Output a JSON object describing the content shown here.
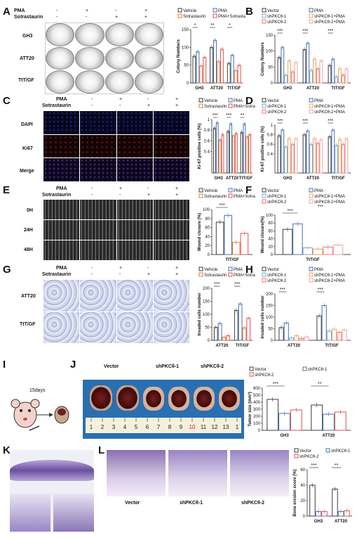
{
  "panels": [
    "A",
    "B",
    "C",
    "D",
    "E",
    "F",
    "G",
    "H",
    "I",
    "J",
    "K",
    "L"
  ],
  "treat": {
    "pma_label": "PMA",
    "sot_label": "Sotrastaurin",
    "pma_row": [
      "-",
      "+",
      "-",
      "+"
    ],
    "sot_row": [
      "-",
      "-",
      "+",
      "+"
    ]
  },
  "A": {
    "rows": [
      "GH3",
      "ATT20",
      "TtT/GF"
    ]
  },
  "C": {
    "rows": [
      "DAPI",
      "Ki67",
      "Merge"
    ]
  },
  "E": {
    "rows": [
      "0H",
      "24H",
      "48H"
    ]
  },
  "G": {
    "rows": [
      "ATT20",
      "TtT/GF"
    ]
  },
  "I": {
    "days": "15days"
  },
  "J": {
    "groups": [
      "Vector",
      "shPKCθ-1",
      "shPKCθ-2"
    ],
    "ruler": [
      "1",
      "2",
      "3",
      "4",
      "5",
      "6",
      "7",
      "8",
      "9",
      "10",
      "11",
      "12",
      "13",
      "1"
    ]
  },
  "L": {
    "captions": [
      "Vector",
      "shPKCθ-1",
      "shPKCθ-2"
    ]
  },
  "colors": {
    "c1": "#3d3d3d",
    "c2": "#4a6fb5",
    "c3": "#e07b39",
    "c4": "#e05050",
    "c5": "#7aa6d6",
    "c6": "#f2a65a",
    "c7": "#f07070",
    "c8": "#f3a3a3"
  },
  "chart_data": [
    {
      "panel": "A",
      "type": "bar",
      "ylabel": "Colony Numbers",
      "categories": [
        "GH3",
        "ATT20",
        "TtT/GF"
      ],
      "ylim": [
        0,
        150
      ],
      "yticks": [
        0,
        50,
        100,
        150
      ],
      "legend": [
        "Vehicle",
        "PMA",
        "Sotrastaurin",
        "PMA+Sotrastaurin"
      ],
      "series": [
        {
          "name": "Vehicle",
          "values": [
            75,
            100,
            55
          ]
        },
        {
          "name": "PMA",
          "values": [
            88,
            120,
            78
          ]
        },
        {
          "name": "Sotrastaurin",
          "values": [
            48,
            60,
            35
          ]
        },
        {
          "name": "PMA+Sotrastaurin",
          "values": [
            72,
            95,
            50
          ]
        }
      ],
      "sig": [
        "*",
        "**",
        "*"
      ]
    },
    {
      "panel": "B",
      "type": "bar",
      "ylabel": "Colony Numbers",
      "categories": [
        "GH3",
        "ATT20",
        "TtT/GF"
      ],
      "ylim": [
        0,
        150
      ],
      "yticks": [
        0,
        50,
        100,
        150
      ],
      "legend": [
        "Vector",
        "PMA",
        "shPKCθ-1",
        "shPKCθ-1+PMA",
        "shPKCθ-2",
        "shPKCθ-2+PMA"
      ],
      "series": [
        {
          "name": "Vector",
          "values": [
            80,
            105,
            55
          ]
        },
        {
          "name": "PMA",
          "values": [
            112,
            125,
            75
          ]
        },
        {
          "name": "shPKCθ-1",
          "values": [
            25,
            40,
            20
          ]
        },
        {
          "name": "shPKCθ-1+PMA",
          "values": [
            70,
            75,
            45
          ]
        },
        {
          "name": "shPKCθ-2",
          "values": [
            35,
            45,
            25
          ]
        },
        {
          "name": "shPKCθ-2+PMA",
          "values": [
            65,
            70,
            45
          ]
        }
      ],
      "sig": [
        "***",
        "***",
        "***"
      ]
    },
    {
      "panel": "C",
      "type": "bar",
      "ylabel": "Ki-67 positive cells (%)",
      "categories": [
        "GH3",
        "ATT20",
        "TtT/GF"
      ],
      "ylim": [
        0,
        1.0
      ],
      "yticks": [
        0.4,
        0.6,
        0.8,
        1.0
      ],
      "legend": [
        "Vehicle",
        "PMA",
        "Sotrastaurin",
        "PMA+Sotrastaurin"
      ],
      "series": [
        {
          "name": "Vehicle",
          "values": [
            0.84,
            0.78,
            0.76
          ]
        },
        {
          "name": "PMA",
          "values": [
            0.94,
            0.92,
            0.92
          ]
        },
        {
          "name": "Sotrastaurin",
          "values": [
            0.62,
            0.7,
            0.68
          ]
        },
        {
          "name": "PMA+Sotrastaurin",
          "values": [
            0.72,
            0.74,
            0.72
          ]
        }
      ],
      "sig": [
        "***",
        "***",
        "**"
      ]
    },
    {
      "panel": "D",
      "type": "bar",
      "ylabel": "Ki-67 positive cells (%)",
      "categories": [
        "GH3",
        "ATT20",
        "TtT/GF"
      ],
      "ylim": [
        0,
        1.0
      ],
      "yticks": [
        0.4,
        0.6,
        0.8,
        1.0
      ],
      "legend": [
        "Vector",
        "PMA",
        "shPKCθ-1",
        "shPKCθ-1+PMA",
        "shPKCθ-2",
        "shPKCθ-2+PMA"
      ],
      "series": [
        {
          "name": "Vector",
          "values": [
            0.78,
            0.8,
            0.76
          ]
        },
        {
          "name": "PMA",
          "values": [
            0.9,
            0.88,
            0.9
          ]
        },
        {
          "name": "shPKCθ-1",
          "values": [
            0.55,
            0.6,
            0.58
          ]
        },
        {
          "name": "shPKCθ-1+PMA",
          "values": [
            0.72,
            0.72,
            0.7
          ]
        },
        {
          "name": "shPKCθ-2",
          "values": [
            0.6,
            0.62,
            0.6
          ]
        },
        {
          "name": "shPKCθ-2+PMA",
          "values": [
            0.72,
            0.7,
            0.72
          ]
        }
      ],
      "sig": [
        "***",
        "***",
        "***"
      ]
    },
    {
      "panel": "E",
      "type": "bar",
      "ylabel": "Wound closure (%)",
      "categories": [
        "TtT/GF"
      ],
      "ylim": [
        0,
        100
      ],
      "yticks": [
        0,
        20,
        40,
        60,
        80,
        100
      ],
      "legend": [
        "Vehicle",
        "PMA",
        "Sotrastaurin",
        "PMA+Sotrastaurin"
      ],
      "series": [
        {
          "name": "Vehicle",
          "values": [
            72
          ]
        },
        {
          "name": "PMA",
          "values": [
            87
          ]
        },
        {
          "name": "Sotrastaurin",
          "values": [
            27
          ]
        },
        {
          "name": "PMA+Sotrastaurin",
          "values": [
            47
          ]
        }
      ],
      "sig": [
        "***"
      ]
    },
    {
      "panel": "F",
      "type": "bar",
      "ylabel": "Wound closure(%)",
      "categories": [
        "TtT/GF"
      ],
      "ylim": [
        0,
        100
      ],
      "yticks": [
        0,
        20,
        40,
        60,
        80,
        100
      ],
      "legend": [
        "Vector",
        "PMA",
        "shPKCθ-1",
        "shPKCθ-1+PMA",
        "shPKCθ-2",
        "shPKCθ-2+PMA"
      ],
      "series": [
        {
          "name": "Vector",
          "values": [
            64
          ]
        },
        {
          "name": "PMA",
          "values": [
            78
          ]
        },
        {
          "name": "shPKCθ-1",
          "values": [
            17
          ]
        },
        {
          "name": "shPKCθ-1+PMA",
          "values": [
            14
          ]
        },
        {
          "name": "shPKCθ-2",
          "values": [
            19
          ]
        },
        {
          "name": "shPKCθ-2+PMA",
          "values": [
            24
          ]
        }
      ],
      "sig": [
        "***",
        "***"
      ]
    },
    {
      "panel": "G",
      "type": "bar",
      "ylabel": "Invaded cells number",
      "categories": [
        "ATT20",
        "TtT/GF"
      ],
      "ylim": [
        0,
        200
      ],
      "yticks": [
        0,
        50,
        100,
        150,
        200
      ],
      "legend": [
        "Vehicle",
        "PMA",
        "Sotrastaurin",
        "PMA+Sotrastaurin"
      ],
      "series": [
        {
          "name": "Vehicle",
          "values": [
            50,
            115
          ]
        },
        {
          "name": "PMA",
          "values": [
            65,
            140
          ]
        },
        {
          "name": "Sotrastaurin",
          "values": [
            12,
            48
          ]
        },
        {
          "name": "PMA+Sotrastaurin",
          "values": [
            18,
            85
          ]
        }
      ],
      "sig": [
        "***",
        "***"
      ]
    },
    {
      "panel": "H",
      "type": "bar",
      "ylabel": "Invaded cells number",
      "categories": [
        "ATT20",
        "TtT/GF"
      ],
      "ylim": [
        0,
        200
      ],
      "yticks": [
        0,
        50,
        100,
        150,
        200
      ],
      "legend": [
        "Vector",
        "PMA",
        "shPKCθ-1",
        "shPKCθ-1+PMA",
        "shPKCθ-2",
        "shPKCθ-2+PMA"
      ],
      "series": [
        {
          "name": "Vector",
          "values": [
            55,
            105
          ]
        },
        {
          "name": "PMA",
          "values": [
            75,
            150
          ]
        },
        {
          "name": "shPKCθ-1",
          "values": [
            10,
            40
          ]
        },
        {
          "name": "shPKCθ-1+PMA",
          "values": [
            20,
            48
          ]
        },
        {
          "name": "shPKCθ-2",
          "values": [
            8,
            35
          ]
        },
        {
          "name": "shPKCθ-2+PMA",
          "values": [
            15,
            45
          ]
        }
      ],
      "sig": [
        "***",
        "***"
      ]
    },
    {
      "panel": "J",
      "type": "bar",
      "ylabel": "Tumor size (mm³)",
      "categories": [
        "GH3",
        "ATT20"
      ],
      "ylim": [
        0,
        600
      ],
      "yticks": [
        0,
        100,
        200,
        300,
        400,
        500,
        600
      ],
      "legend": [
        "Vector",
        "shPKCθ-1",
        "shPKCθ-2"
      ],
      "series": [
        {
          "name": "Vector",
          "values": [
            440,
            360
          ]
        },
        {
          "name": "shPKCθ-1",
          "values": [
            240,
            230
          ]
        },
        {
          "name": "shPKCθ-2",
          "values": [
            290,
            260
          ]
        }
      ],
      "sig": [
        "***",
        "**"
      ]
    },
    {
      "panel": "L",
      "type": "bar",
      "ylabel": "Bone erosion score (%)",
      "categories": [
        "GH3",
        "ATT20"
      ],
      "ylim": [
        0,
        60
      ],
      "yticks": [
        0,
        20,
        40,
        60
      ],
      "legend": [
        "Vector",
        "shPKCθ-1",
        "shPKCθ-2"
      ],
      "series": [
        {
          "name": "Vector",
          "values": [
            40,
            35
          ]
        },
        {
          "name": "shPKCθ-1",
          "values": [
            6,
            6
          ]
        },
        {
          "name": "shPKCθ-2",
          "values": [
            6,
            7
          ]
        }
      ],
      "sig": [
        "***",
        "**"
      ]
    }
  ]
}
